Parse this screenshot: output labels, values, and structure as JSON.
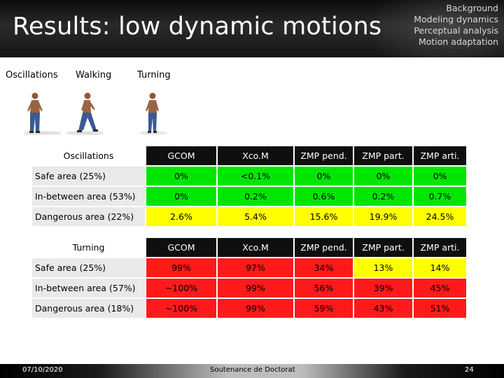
{
  "header": {
    "title": "Results: low dynamic motions",
    "outline": [
      "Background",
      "Modeling dynamics",
      "Perceptual analysis",
      "Motion adaptation"
    ]
  },
  "figures": {
    "labels": [
      "Oscillations",
      "Walking",
      "Turning"
    ]
  },
  "tables": [
    {
      "corner": "Oscillations",
      "columns": [
        "GCOM",
        "Xco.M",
        "ZMP pend.",
        "ZMP part.",
        "ZMP arti."
      ],
      "rows": [
        {
          "label": "Safe area (25%)",
          "cells": [
            {
              "v": "0%",
              "c": "green"
            },
            {
              "v": "<0.1%",
              "c": "green"
            },
            {
              "v": "0%",
              "c": "green"
            },
            {
              "v": "0%",
              "c": "green"
            },
            {
              "v": "0%",
              "c": "green"
            }
          ]
        },
        {
          "label": "In-between area (53%)",
          "cells": [
            {
              "v": "0%",
              "c": "green"
            },
            {
              "v": "0.2%",
              "c": "green"
            },
            {
              "v": "0.6%",
              "c": "green"
            },
            {
              "v": "0.2%",
              "c": "green"
            },
            {
              "v": "0.7%",
              "c": "green"
            }
          ]
        },
        {
          "label": "Dangerous area (22%)",
          "cells": [
            {
              "v": "2.6%",
              "c": "yellow"
            },
            {
              "v": "5.4%",
              "c": "yellow"
            },
            {
              "v": "15.6%",
              "c": "yellow"
            },
            {
              "v": "19.9%",
              "c": "yellow"
            },
            {
              "v": "24.5%",
              "c": "yellow"
            }
          ]
        }
      ]
    },
    {
      "corner": "Turning",
      "columns": [
        "GCOM",
        "Xco.M",
        "ZMP pend.",
        "ZMP part.",
        "ZMP arti."
      ],
      "rows": [
        {
          "label": "Safe area (25%)",
          "cells": [
            {
              "v": "99%",
              "c": "red"
            },
            {
              "v": "97%",
              "c": "red"
            },
            {
              "v": "34%",
              "c": "red"
            },
            {
              "v": "13%",
              "c": "yellow"
            },
            {
              "v": "14%",
              "c": "yellow"
            }
          ]
        },
        {
          "label": "In-between area (57%)",
          "cells": [
            {
              "v": "~100%",
              "c": "red"
            },
            {
              "v": "99%",
              "c": "red"
            },
            {
              "v": "56%",
              "c": "red"
            },
            {
              "v": "39%",
              "c": "red"
            },
            {
              "v": "45%",
              "c": "red"
            }
          ]
        },
        {
          "label": "Dangerous area (18%)",
          "cells": [
            {
              "v": "~100%",
              "c": "red"
            },
            {
              "v": "99%",
              "c": "red"
            },
            {
              "v": "59%",
              "c": "red"
            },
            {
              "v": "43%",
              "c": "red"
            },
            {
              "v": "51%",
              "c": "red"
            }
          ]
        }
      ]
    }
  ],
  "footer": {
    "date": "07/10/2020",
    "center": "Soutenance de Doctorat",
    "page": "24"
  },
  "colors": {
    "green": "#00e600",
    "yellow": "#ffff00",
    "red": "#ff1a1a",
    "header": "#0f0f0f"
  }
}
